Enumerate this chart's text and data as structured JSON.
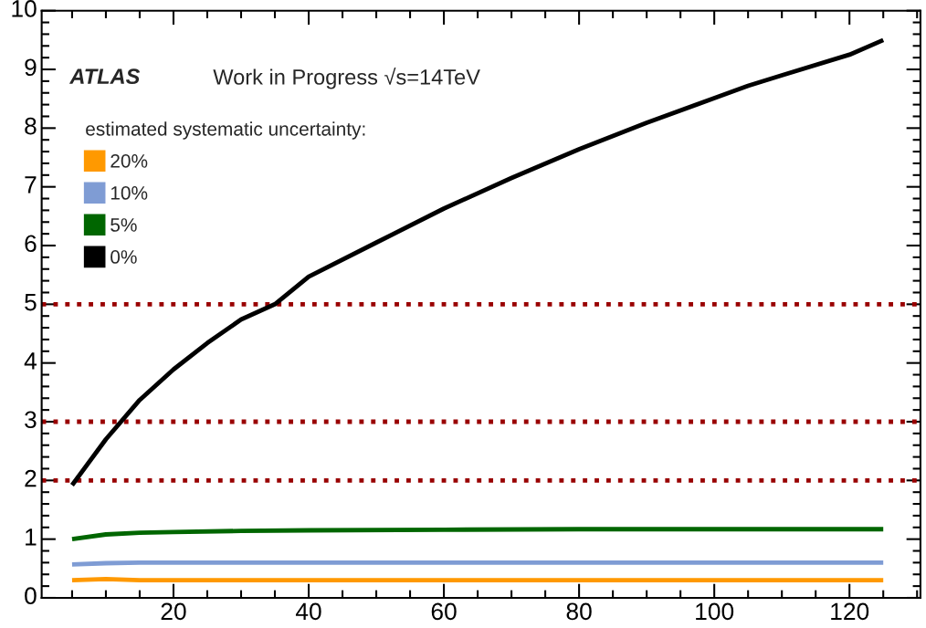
{
  "chart_data": {
    "type": "line",
    "annotations": [
      "ATLAS",
      "Work in Progress √s=14TeV"
    ],
    "legend_title": "estimated systematic uncertainty:",
    "xlim": [
      0.5,
      130.5
    ],
    "xticks": [
      20,
      40,
      60,
      80,
      100,
      120
    ],
    "ylim": [
      0,
      10
    ],
    "yticks": [
      0,
      1,
      2,
      3,
      4,
      5,
      6,
      7,
      8,
      9,
      10
    ],
    "grid": false,
    "legend": "top left",
    "marker": "none",
    "line_style": "solid",
    "series": [
      {
        "name": "20%",
        "color": "#ff9900",
        "x": [
          5,
          10,
          15,
          20,
          40,
          60,
          80,
          100,
          125
        ],
        "values": [
          0.3,
          0.32,
          0.3,
          0.3,
          0.3,
          0.3,
          0.3,
          0.3,
          0.3
        ]
      },
      {
        "name": "10%",
        "color": "#7f9cd4",
        "x": [
          5,
          10,
          15,
          20,
          40,
          60,
          80,
          100,
          125
        ],
        "values": [
          0.57,
          0.59,
          0.6,
          0.6,
          0.6,
          0.6,
          0.6,
          0.6,
          0.6
        ]
      },
      {
        "name": "5%",
        "color": "#006600",
        "x": [
          5,
          10,
          15,
          20,
          30,
          40,
          60,
          80,
          100,
          125
        ],
        "values": [
          1.0,
          1.08,
          1.11,
          1.12,
          1.14,
          1.15,
          1.16,
          1.17,
          1.17,
          1.17
        ]
      },
      {
        "name": "0%",
        "color": "#000000",
        "x": [
          5,
          10,
          15,
          20,
          25,
          30,
          35,
          40,
          50,
          60,
          70,
          80,
          90,
          100,
          105,
          110,
          120,
          125
        ],
        "values": [
          1.92,
          2.7,
          3.37,
          3.89,
          4.34,
          4.74,
          5.0,
          5.47,
          6.05,
          6.63,
          7.15,
          7.64,
          8.09,
          8.51,
          8.72,
          8.9,
          9.25,
          9.5
        ]
      }
    ],
    "ref_lines": [
      {
        "axis": "y",
        "value": 5,
        "color": "#990000",
        "line_style": "dotted"
      },
      {
        "axis": "y",
        "value": 3,
        "color": "#990000",
        "line_style": "dotted"
      },
      {
        "axis": "y",
        "value": 2,
        "color": "#990000",
        "line_style": "dotted"
      }
    ]
  }
}
